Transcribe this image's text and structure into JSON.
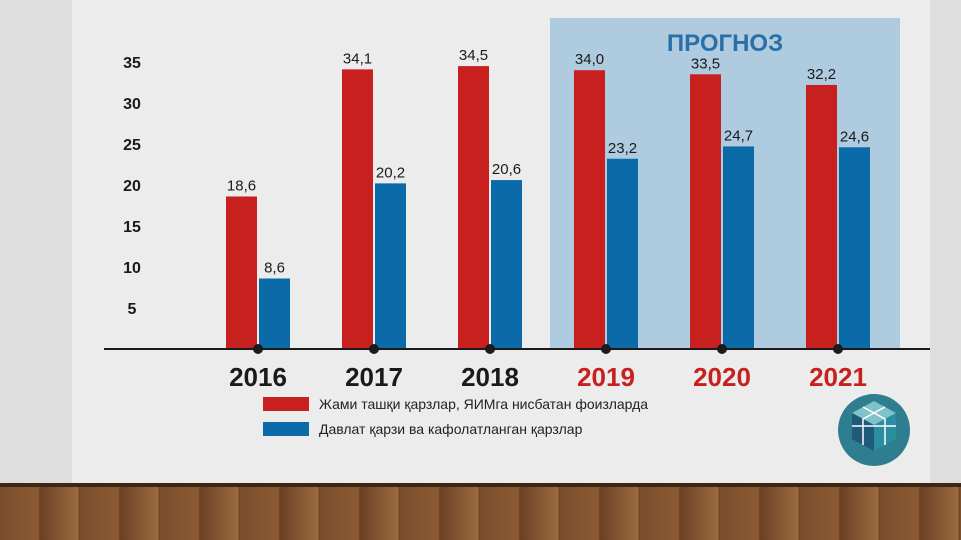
{
  "chart_data": {
    "type": "bar",
    "categories": [
      "2016",
      "2017",
      "2018",
      "2019",
      "2020",
      "2021"
    ],
    "highlighted_categories": [
      "2019",
      "2020",
      "2021"
    ],
    "forecast_label": "ПРОГНОЗ",
    "series": [
      {
        "name": "Жами ташқи қарзлар, ЯИМга нисбатан фоизларда",
        "values": [
          18.6,
          34.1,
          34.5,
          34.0,
          33.5,
          32.2
        ],
        "labels": [
          "18,6",
          "34,1",
          "34,5",
          "34,0",
          "33,5",
          "32,2"
        ],
        "color": "#c8201e"
      },
      {
        "name": "Давлат қарзи ва кафолатланган қарзлар",
        "values": [
          8.6,
          20.2,
          20.6,
          23.2,
          24.7,
          24.6
        ],
        "labels": [
          "8,6",
          "20,2",
          "20,6",
          "23,2",
          "24,7",
          "24,6"
        ],
        "color": "#0b6aa8"
      }
    ],
    "yticks": [
      "5",
      "10",
      "15",
      "20",
      "25",
      "30",
      "35"
    ],
    "ylim": [
      0,
      35
    ],
    "grid": false,
    "legend_position": "bottom"
  },
  "colors": {
    "year_normal": "#1a1a1a",
    "year_forecast": "#c8201e",
    "forecast_bg": "#aecbe0",
    "forecast_title": "#2a6fa8"
  }
}
